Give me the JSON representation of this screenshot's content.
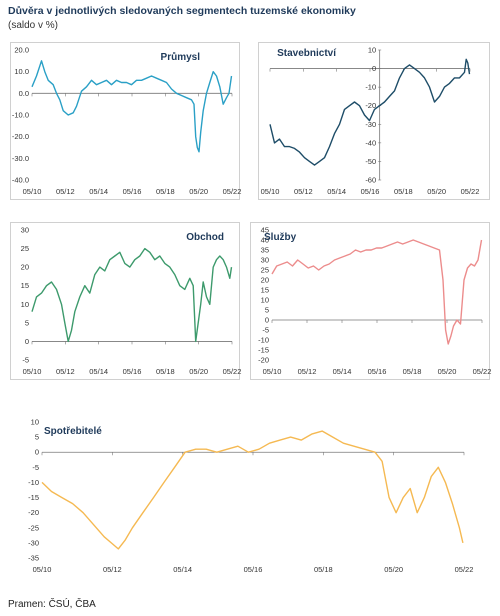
{
  "title": "Důvěra v jednotlivých sledovaných segmentech tuzemské ekonomiky",
  "subtitle": "(saldo v %)",
  "source": "Pramen: ČSÚ, ČBA",
  "chart_data": [
    {
      "id": "prumysl",
      "type": "line",
      "title": "Průmysl",
      "color": "#2aa0c6",
      "xlabels": [
        "05/10",
        "05/12",
        "05/14",
        "05/16",
        "05/18",
        "05/20",
        "05/22"
      ],
      "ylim": [
        -40,
        20
      ],
      "yticks": [
        20,
        10,
        0,
        -10,
        -20,
        -30,
        -40
      ],
      "ytick_labels": [
        "20.0",
        "10.0",
        "0.0",
        "-10.0",
        "-20.0",
        "-30.0",
        "-40.0"
      ],
      "x": [
        2010.33,
        2010.6,
        2010.9,
        2011.1,
        2011.3,
        2011.6,
        2011.8,
        2012.0,
        2012.2,
        2012.5,
        2012.8,
        2013.0,
        2013.3,
        2013.6,
        2013.9,
        2014.2,
        2014.5,
        2014.8,
        2015.1,
        2015.4,
        2015.7,
        2016.0,
        2016.3,
        2016.6,
        2016.9,
        2017.2,
        2017.5,
        2017.8,
        2018.1,
        2018.4,
        2018.7,
        2019.0,
        2019.3,
        2019.6,
        2019.9,
        2020.05,
        2020.15,
        2020.25,
        2020.35,
        2020.45,
        2020.6,
        2020.8,
        2021.0,
        2021.2,
        2021.4,
        2021.6,
        2021.8,
        2022.0,
        2022.15,
        2022.3
      ],
      "values": [
        3,
        8,
        15,
        10,
        6,
        4,
        0,
        -3,
        -8,
        -10,
        -9,
        -6,
        1,
        3,
        6,
        4,
        5,
        6,
        4,
        6,
        5,
        5,
        4,
        6,
        6,
        7,
        8,
        7,
        6,
        5,
        2,
        0,
        -1,
        -2,
        -3,
        -5,
        -20,
        -25,
        -27,
        -18,
        -8,
        0,
        5,
        10,
        8,
        3,
        -5,
        -2,
        0,
        8
      ]
    },
    {
      "id": "stavebnictvi",
      "type": "line",
      "title": "Stavebnictví",
      "color": "#1e4d68",
      "xlabels": [
        "05/10",
        "05/12",
        "05/14",
        "05/16",
        "05/18",
        "05/20",
        "05/22"
      ],
      "ylim": [
        -60,
        10
      ],
      "yticks": [
        10,
        0,
        -10,
        -20,
        -30,
        -40,
        -50,
        -60
      ],
      "ytick_labels": [
        "10",
        "0",
        "-10",
        "-20",
        "-30",
        "-40",
        "-50",
        "-60"
      ],
      "x": [
        2010.33,
        2010.6,
        2010.9,
        2011.2,
        2011.5,
        2011.8,
        2012.1,
        2012.4,
        2012.7,
        2013.0,
        2013.3,
        2013.6,
        2013.9,
        2014.2,
        2014.5,
        2014.8,
        2015.1,
        2015.4,
        2015.7,
        2016.0,
        2016.3,
        2016.6,
        2016.9,
        2017.2,
        2017.5,
        2017.8,
        2018.1,
        2018.4,
        2018.7,
        2019.0,
        2019.3,
        2019.6,
        2019.9,
        2020.2,
        2020.5,
        2020.8,
        2021.1,
        2021.4,
        2021.7,
        2022.0,
        2022.1,
        2022.2,
        2022.3
      ],
      "values": [
        -30,
        -40,
        -38,
        -42,
        -42,
        -43,
        -45,
        -48,
        -50,
        -52,
        -50,
        -48,
        -42,
        -35,
        -30,
        -22,
        -20,
        -18,
        -20,
        -25,
        -28,
        -22,
        -20,
        -18,
        -15,
        -12,
        -5,
        0,
        2,
        0,
        -2,
        -5,
        -10,
        -18,
        -15,
        -10,
        -8,
        -5,
        -5,
        -2,
        5,
        3,
        -3
      ]
    },
    {
      "id": "obchod",
      "type": "line",
      "title": "Obchod",
      "color": "#3d9a6c",
      "xlabels": [
        "05/10",
        "05/12",
        "05/14",
        "05/16",
        "05/18",
        "05/20",
        "05/22"
      ],
      "ylim": [
        -5,
        30
      ],
      "yticks": [
        30,
        25,
        20,
        15,
        10,
        5,
        0,
        -5
      ],
      "ytick_labels": [
        "30",
        "25",
        "20",
        "15",
        "10",
        "5",
        "0",
        "-5"
      ],
      "x": [
        2010.33,
        2010.6,
        2010.9,
        2011.2,
        2011.5,
        2011.8,
        2012.1,
        2012.3,
        2012.5,
        2012.7,
        2012.9,
        2013.2,
        2013.5,
        2013.8,
        2014.1,
        2014.4,
        2014.7,
        2015.0,
        2015.3,
        2015.6,
        2015.9,
        2016.2,
        2016.5,
        2016.8,
        2017.1,
        2017.4,
        2017.7,
        2018.0,
        2018.3,
        2018.6,
        2018.9,
        2019.2,
        2019.5,
        2019.8,
        2020.0,
        2020.15,
        2020.3,
        2020.45,
        2020.6,
        2020.8,
        2021.0,
        2021.2,
        2021.4,
        2021.6,
        2021.8,
        2022.0,
        2022.2,
        2022.3
      ],
      "values": [
        8,
        12,
        13,
        15,
        16,
        14,
        10,
        5,
        0,
        3,
        8,
        12,
        15,
        13,
        18,
        20,
        19,
        22,
        23,
        24,
        21,
        20,
        22,
        23,
        25,
        24,
        22,
        23,
        21,
        20,
        18,
        15,
        14,
        17,
        15,
        0,
        5,
        10,
        16,
        12,
        10,
        20,
        22,
        23,
        22,
        20,
        17,
        20
      ]
    },
    {
      "id": "sluzby",
      "type": "line",
      "title": "Služby",
      "color": "#ec8c8c",
      "xlabels": [
        "05/10",
        "05/12",
        "05/14",
        "05/16",
        "05/18",
        "05/20",
        "05/22"
      ],
      "ylim": [
        -20,
        45
      ],
      "yticks": [
        45,
        40,
        35,
        30,
        25,
        20,
        15,
        10,
        5,
        0,
        -5,
        -10,
        -15,
        -20
      ],
      "ytick_labels": [
        "45",
        "40",
        "35",
        "30",
        "25",
        "20",
        "15",
        "10",
        "5",
        "0",
        "-5",
        "-10",
        "-15",
        "-20"
      ],
      "x": [
        2010.33,
        2010.6,
        2010.9,
        2011.2,
        2011.5,
        2011.8,
        2012.1,
        2012.4,
        2012.7,
        2013.0,
        2013.3,
        2013.6,
        2013.9,
        2014.2,
        2014.5,
        2014.8,
        2015.1,
        2015.4,
        2015.7,
        2016.0,
        2016.3,
        2016.6,
        2016.9,
        2017.2,
        2017.5,
        2017.8,
        2018.1,
        2018.4,
        2018.7,
        2019.0,
        2019.3,
        2019.6,
        2019.9,
        2020.1,
        2020.25,
        2020.4,
        2020.55,
        2020.7,
        2020.9,
        2021.1,
        2021.3,
        2021.5,
        2021.7,
        2021.9,
        2022.1,
        2022.3
      ],
      "values": [
        23,
        27,
        28,
        29,
        27,
        30,
        28,
        26,
        27,
        25,
        27,
        28,
        30,
        31,
        32,
        33,
        35,
        34,
        35,
        35,
        36,
        36,
        37,
        38,
        39,
        38,
        39,
        40,
        39,
        38,
        37,
        36,
        35,
        20,
        -5,
        -12,
        -8,
        -3,
        0,
        -2,
        20,
        26,
        28,
        27,
        30,
        40
      ]
    },
    {
      "id": "spotrebitele",
      "type": "line",
      "title": "Spotřebitelé",
      "color": "#f5b952",
      "xlabels": [
        "05/10",
        "05/12",
        "05/14",
        "05/16",
        "05/18",
        "05/20",
        "05/22"
      ],
      "ylim": [
        -35,
        10
      ],
      "yticks": [
        10,
        5,
        0,
        -5,
        -10,
        -15,
        -20,
        -25,
        -30,
        -35
      ],
      "ytick_labels": [
        "10",
        "5",
        "0",
        "-5",
        "-10",
        "-15",
        "-20",
        "-25",
        "-30",
        "-35"
      ],
      "x": [
        2010.33,
        2010.6,
        2010.9,
        2011.2,
        2011.5,
        2011.8,
        2012.1,
        2012.3,
        2012.5,
        2012.7,
        2012.9,
        2013.2,
        2013.5,
        2013.8,
        2014.1,
        2014.4,
        2014.7,
        2015.0,
        2015.3,
        2015.6,
        2015.9,
        2016.2,
        2016.5,
        2016.8,
        2017.1,
        2017.4,
        2017.7,
        2018.0,
        2018.3,
        2018.6,
        2018.9,
        2019.2,
        2019.5,
        2019.8,
        2020.0,
        2020.2,
        2020.4,
        2020.6,
        2020.8,
        2021.0,
        2021.2,
        2021.4,
        2021.6,
        2021.8,
        2022.0,
        2022.2,
        2022.3
      ],
      "values": [
        -10,
        -13,
        -15,
        -17,
        -20,
        -24,
        -28,
        -30,
        -32,
        -29,
        -25,
        -20,
        -15,
        -10,
        -5,
        0,
        1,
        1,
        0,
        1,
        2,
        0,
        1,
        3,
        4,
        5,
        4,
        6,
        7,
        5,
        3,
        2,
        1,
        0,
        -3,
        -15,
        -20,
        -15,
        -12,
        -20,
        -15,
        -8,
        -5,
        -10,
        -17,
        -25,
        -30
      ]
    }
  ]
}
